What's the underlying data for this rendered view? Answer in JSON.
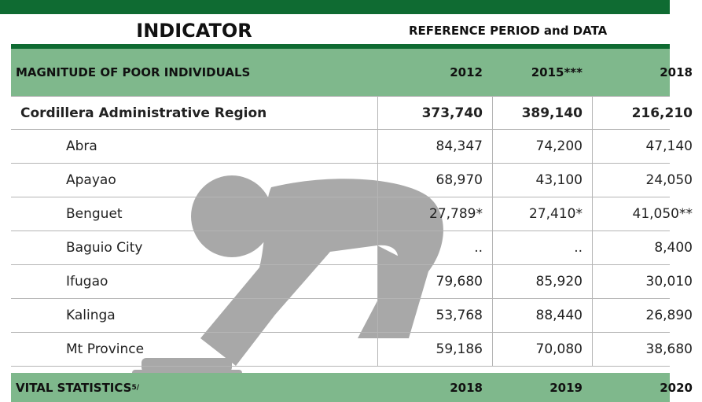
{
  "header": {
    "indicator": "INDICATOR",
    "reference": "REFERENCE PERIOD and DATA"
  },
  "sections": [
    {
      "title": "MAGNITUDE OF POOR INDIVIDUALS",
      "years": [
        "2012",
        "2015***",
        "2018"
      ],
      "rows": [
        {
          "label": "Cordillera Administrative Region",
          "values": [
            "373,740",
            "389,140",
            "216,210"
          ]
        },
        {
          "label": "Abra",
          "values": [
            "84,347",
            "74,200",
            "47,140"
          ]
        },
        {
          "label": "Apayao",
          "values": [
            "68,970",
            "43,100",
            "24,050"
          ]
        },
        {
          "label": "Benguet",
          "values": [
            "27,789*",
            "27,410*",
            "41,050**"
          ]
        },
        {
          "label": "Baguio City",
          "values": [
            "..",
            "..",
            "8,400"
          ]
        },
        {
          "label": "Ifugao",
          "values": [
            "79,680",
            "85,920",
            "30,010"
          ]
        },
        {
          "label": "Kalinga",
          "values": [
            "53,768",
            "88,440",
            "26,890"
          ]
        },
        {
          "label": "Mt Province",
          "values": [
            "59,186",
            "70,080",
            "38,680"
          ]
        }
      ]
    },
    {
      "title": "VITAL STATISTICS",
      "note": "5/",
      "years": [
        "2018",
        "2019",
        "2020"
      ],
      "rows": []
    }
  ]
}
